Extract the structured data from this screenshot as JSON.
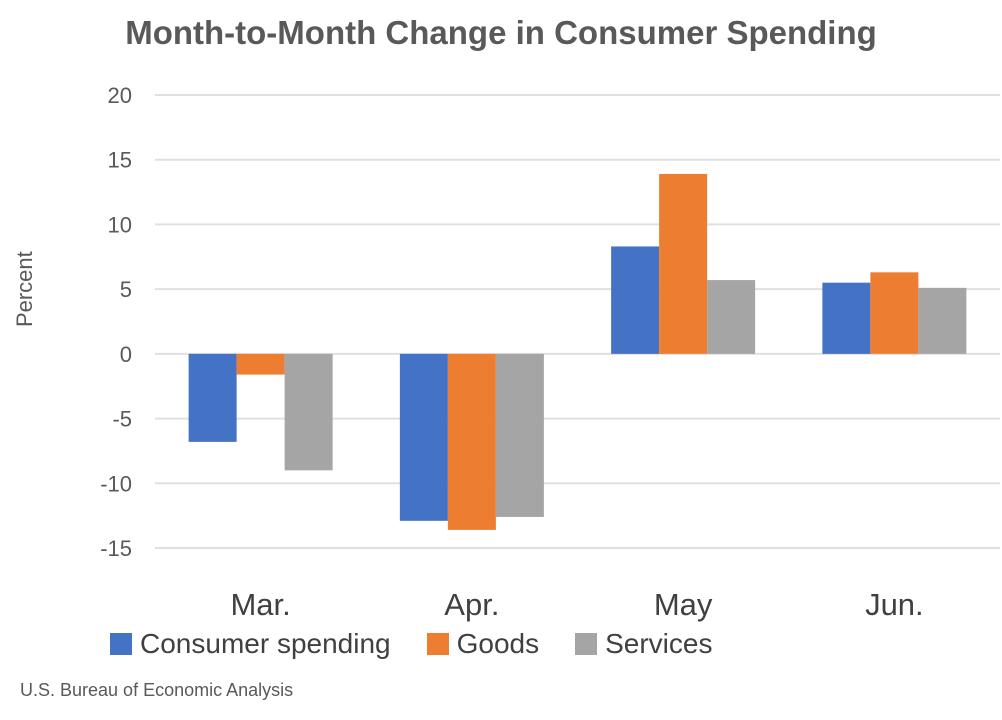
{
  "chart_data": {
    "type": "bar",
    "title": "Month-to-Month Change in Consumer Spending",
    "ylabel": "Percent",
    "xlabel": "",
    "ylim": [
      -15,
      20
    ],
    "yticks": [
      20,
      15,
      10,
      5,
      0,
      -5,
      -10,
      -15
    ],
    "grid": true,
    "legend_position": "bottom",
    "categories": [
      "Mar.",
      "Apr.",
      "May",
      "Jun."
    ],
    "series": [
      {
        "name": "Consumer spending",
        "color": "#4472C4",
        "values": [
          -6.8,
          -12.9,
          8.3,
          5.5
        ]
      },
      {
        "name": "Goods",
        "color": "#ED7D31",
        "values": [
          -1.6,
          -13.6,
          13.9,
          6.3
        ]
      },
      {
        "name": "Services",
        "color": "#A5A5A5",
        "values": [
          -9.0,
          -12.6,
          5.7,
          5.1
        ]
      }
    ]
  },
  "source": "U.S. Bureau of Economic Analysis"
}
